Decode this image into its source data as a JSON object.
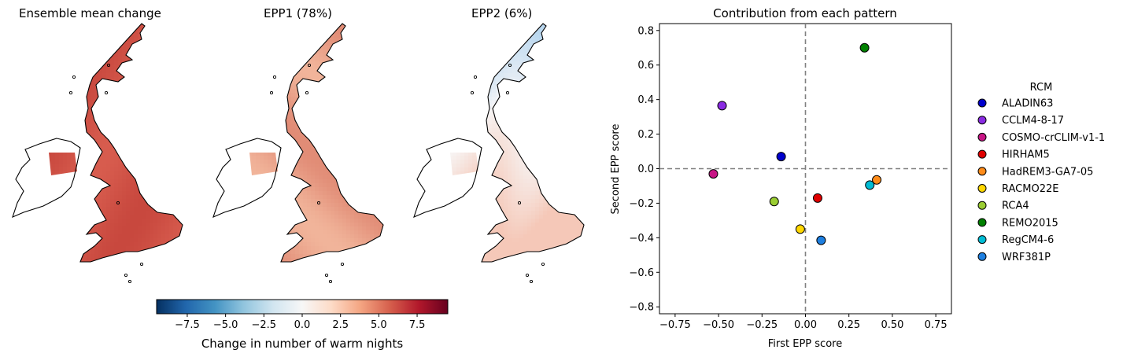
{
  "maps": [
    {
      "title": "Ensemble mean change",
      "palette": "solid-red"
    },
    {
      "title": "EPP1 (78%)",
      "palette": "light-red"
    },
    {
      "title": "EPP2 (6%)",
      "palette": "blue-white-red"
    }
  ],
  "colorbar": {
    "label": "Change in number of warm nights",
    "colormap": "RdBu_r",
    "range": [
      -9.5,
      9.5
    ],
    "ticks": [
      "−7.5",
      "−5.0",
      "−2.5",
      "0.0",
      "2.5",
      "5.0",
      "7.5"
    ],
    "tick_values": [
      -7.5,
      -5.0,
      -2.5,
      0.0,
      2.5,
      5.0,
      7.5
    ]
  },
  "chart_data": {
    "type": "scatter",
    "title": "Contribution from each pattern",
    "xlabel": "First EPP score",
    "ylabel": "Second EPP score",
    "xlim": [
      -0.84,
      0.84
    ],
    "ylim": [
      -0.84,
      0.84
    ],
    "xticks": [
      -0.75,
      -0.5,
      -0.25,
      0.0,
      0.25,
      0.5,
      0.75
    ],
    "yticks": [
      -0.8,
      -0.6,
      -0.4,
      -0.2,
      0.0,
      0.2,
      0.4,
      0.6,
      0.8
    ],
    "xtick_labels": [
      "−0.75",
      "−0.50",
      "−0.25",
      "0.00",
      "0.25",
      "0.50",
      "0.75"
    ],
    "ytick_labels": [
      "−0.8",
      "−0.6",
      "−0.4",
      "−0.2",
      "0.0",
      "0.2",
      "0.4",
      "0.6",
      "0.8"
    ],
    "reference_lines": {
      "x": 0.0,
      "y": 0.0,
      "style": "dashed",
      "color": "#808080"
    },
    "grid": false,
    "legend": {
      "title": "RCM",
      "placement": "outside-right"
    },
    "series": [
      {
        "name": "ALADIN63",
        "color": "#0000cd",
        "x": -0.14,
        "y": 0.07
      },
      {
        "name": "CCLM4-8-17",
        "color": "#8a2be2",
        "x": -0.48,
        "y": 0.365
      },
      {
        "name": "COSMO-crCLIM-v1-1",
        "color": "#c71585",
        "x": -0.53,
        "y": -0.03
      },
      {
        "name": "HIRHAM5",
        "color": "#e00000",
        "x": 0.07,
        "y": -0.17
      },
      {
        "name": "HadREM3-GA7-05",
        "color": "#ff8c1a",
        "x": 0.41,
        "y": -0.065
      },
      {
        "name": "RACMO22E",
        "color": "#ffd700",
        "x": -0.03,
        "y": -0.35
      },
      {
        "name": "RCA4",
        "color": "#9acd32",
        "x": -0.18,
        "y": -0.19
      },
      {
        "name": "REMO2015",
        "color": "#008000",
        "x": 0.34,
        "y": 0.7
      },
      {
        "name": "RegCM4-6",
        "color": "#00bcd4",
        "x": 0.37,
        "y": -0.095
      },
      {
        "name": "WRF381P",
        "color": "#1e7fe0",
        "x": 0.09,
        "y": -0.415
      }
    ]
  }
}
